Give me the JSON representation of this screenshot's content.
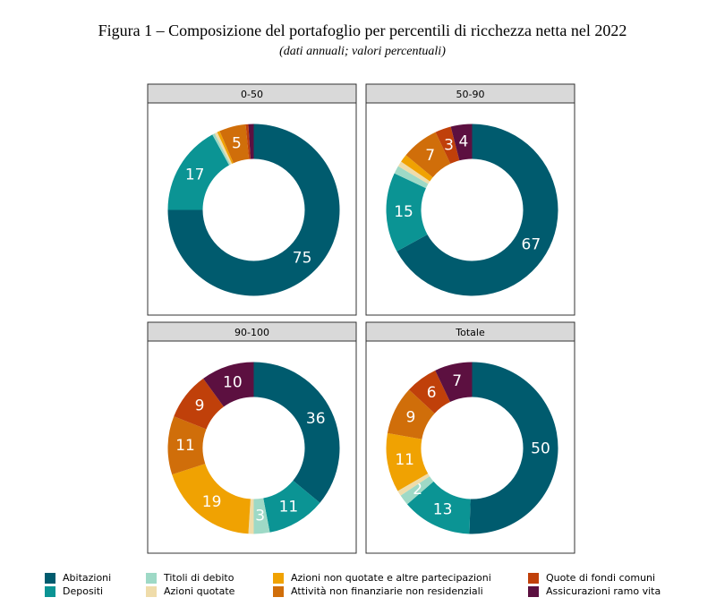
{
  "title": "Figura 1 – Composizione del portafoglio per percentili di ricchezza netta nel 2022",
  "subtitle": "(dati annuali; valori percentuali)",
  "chart_data": [
    {
      "type": "donut",
      "title": "0-50",
      "categories": [
        "Abitazioni",
        "Depositi",
        "Titoli di debito",
        "Azioni quotate",
        "Azioni non quotate e altre partecipazioni",
        "Attività non finanziarie non residenziali",
        "Quote di fondi comuni",
        "Assicurazioni ramo vita"
      ],
      "colors": [
        "#005b6e",
        "#0b9494",
        "#9ed9c6",
        "#efdcaa",
        "#f0a202",
        "#d06e0a",
        "#c0400a",
        "#5c1040"
      ],
      "values": [
        75,
        17,
        0.5,
        0.5,
        0.5,
        5,
        0.5,
        1
      ]
    },
    {
      "type": "donut",
      "title": "50-90",
      "categories": [
        "Abitazioni",
        "Depositi",
        "Titoli di debito",
        "Azioni quotate",
        "Azioni non quotate e altre partecipazioni",
        "Attività non finanziarie non residenziali",
        "Quote di fondi comuni",
        "Assicurazioni ramo vita"
      ],
      "colors": [
        "#005b6e",
        "#0b9494",
        "#9ed9c6",
        "#efdcaa",
        "#f0a202",
        "#d06e0a",
        "#c0400a",
        "#5c1040"
      ],
      "values": [
        67,
        15,
        1.5,
        1,
        1.5,
        7,
        3,
        4
      ]
    },
    {
      "type": "donut",
      "title": "90-100",
      "categories": [
        "Abitazioni",
        "Depositi",
        "Titoli di debito",
        "Azioni quotate",
        "Azioni non quotate e altre partecipazioni",
        "Attività non finanziarie non residenziali",
        "Quote di fondi comuni",
        "Assicurazioni ramo vita"
      ],
      "colors": [
        "#005b6e",
        "#0b9494",
        "#9ed9c6",
        "#efdcaa",
        "#f0a202",
        "#d06e0a",
        "#c0400a",
        "#5c1040"
      ],
      "values": [
        36,
        11,
        3,
        1,
        19,
        11,
        9,
        10
      ]
    },
    {
      "type": "donut",
      "title": "Totale",
      "categories": [
        "Abitazioni",
        "Depositi",
        "Titoli di debito",
        "Azioni quotate",
        "Azioni non quotate e altre partecipazioni",
        "Attività non finanziarie non residenziali",
        "Quote di fondi comuni",
        "Assicurazioni ramo vita"
      ],
      "colors": [
        "#005b6e",
        "#0b9494",
        "#9ed9c6",
        "#efdcaa",
        "#f0a202",
        "#d06e0a",
        "#c0400a",
        "#5c1040"
      ],
      "values": [
        50,
        13,
        2,
        1,
        11,
        9,
        6,
        7
      ]
    }
  ]
}
